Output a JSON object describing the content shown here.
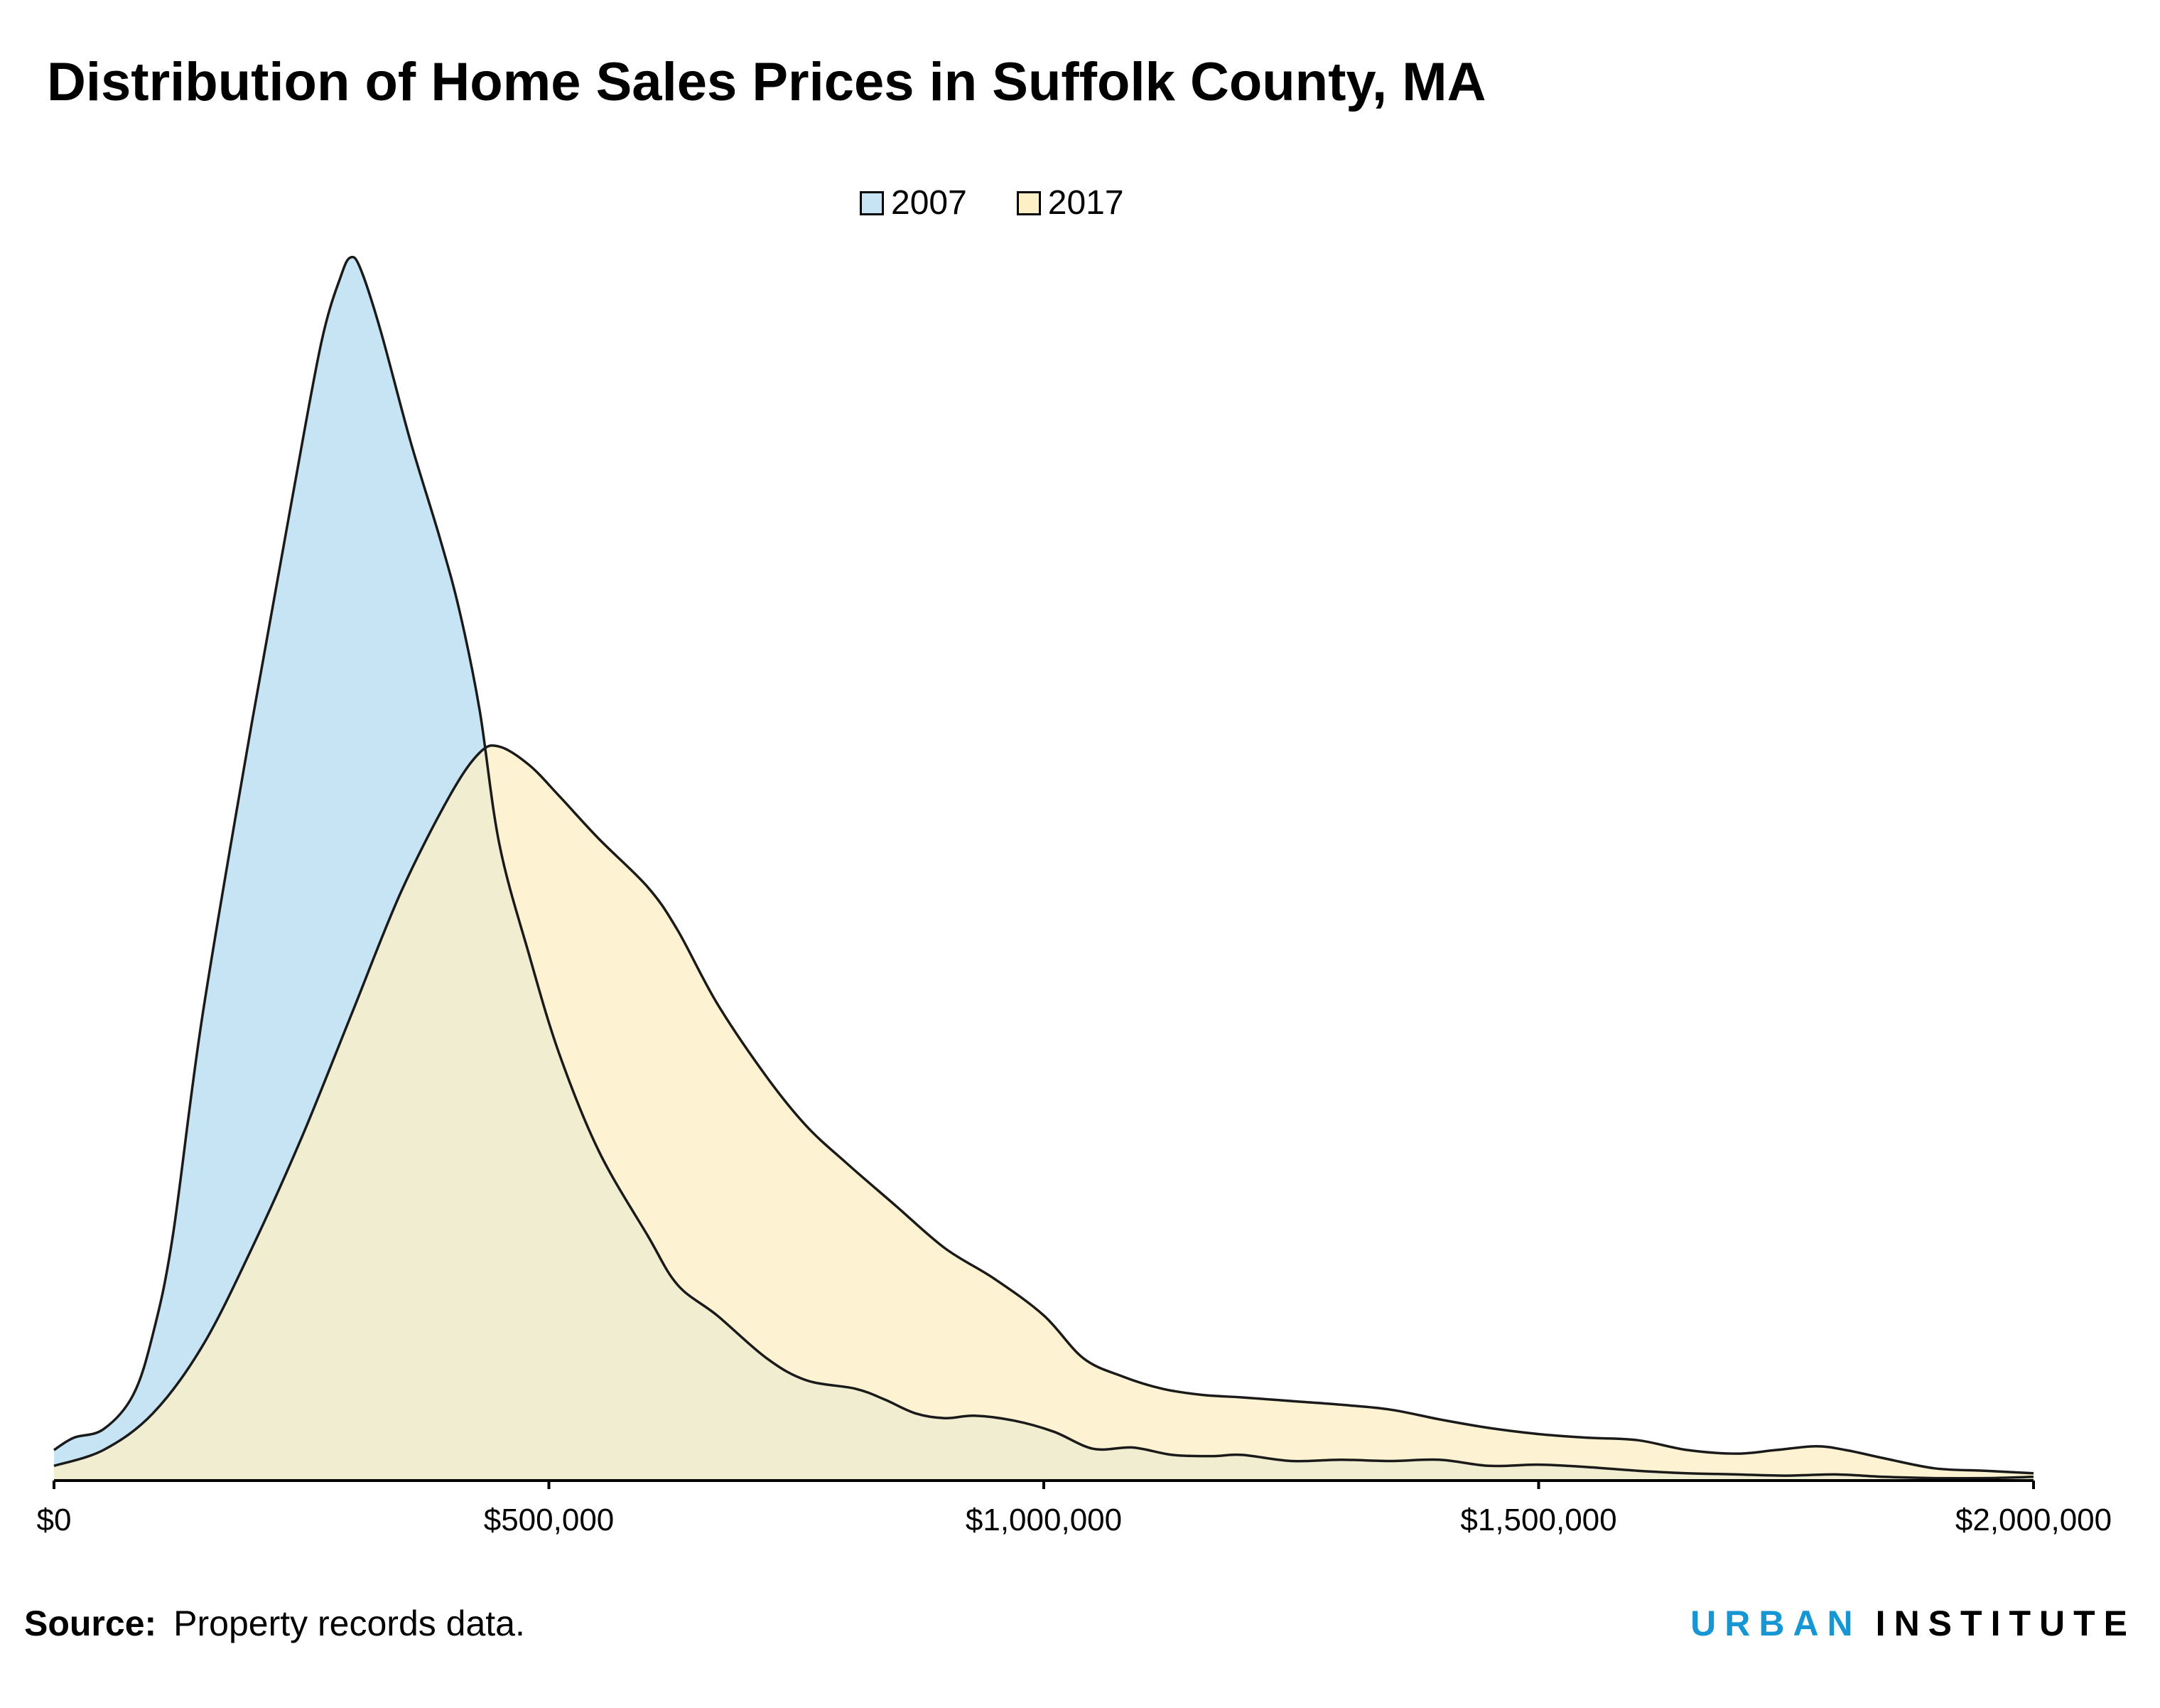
{
  "chart_data": {
    "type": "area",
    "title": "Distribution of Home Sales Prices in Suffolk County, MA",
    "xlabel": "",
    "ylabel": "",
    "xlim": [
      0,
      2000000
    ],
    "ylim": [
      0,
      1.0
    ],
    "x_ticks": [
      0,
      500000,
      1000000,
      1500000,
      2000000
    ],
    "x_tick_labels": [
      "$0",
      "$500,000",
      "$1,000,000",
      "$1,500,000",
      "$2,000,000"
    ],
    "grid": false,
    "legend_position": "top-center",
    "series": [
      {
        "name": "2007",
        "color": "#c6e4f4",
        "points": [
          [
            0,
            0.025
          ],
          [
            20000,
            0.035
          ],
          [
            50000,
            0.042
          ],
          [
            80000,
            0.07
          ],
          [
            100000,
            0.12
          ],
          [
            120000,
            0.2
          ],
          [
            150000,
            0.38
          ],
          [
            200000,
            0.62
          ],
          [
            240000,
            0.8
          ],
          [
            270000,
            0.93
          ],
          [
            290000,
            0.985
          ],
          [
            300000,
            1.0
          ],
          [
            310000,
            0.99
          ],
          [
            330000,
            0.94
          ],
          [
            360000,
            0.85
          ],
          [
            390000,
            0.77
          ],
          [
            410000,
            0.71
          ],
          [
            430000,
            0.63
          ],
          [
            450000,
            0.52
          ],
          [
            480000,
            0.43
          ],
          [
            510000,
            0.35
          ],
          [
            550000,
            0.27
          ],
          [
            600000,
            0.2
          ],
          [
            630000,
            0.16
          ],
          [
            670000,
            0.135
          ],
          [
            720000,
            0.1
          ],
          [
            760000,
            0.082
          ],
          [
            810000,
            0.075
          ],
          [
            840000,
            0.066
          ],
          [
            870000,
            0.055
          ],
          [
            900000,
            0.051
          ],
          [
            930000,
            0.053
          ],
          [
            970000,
            0.049
          ],
          [
            1010000,
            0.04
          ],
          [
            1050000,
            0.026
          ],
          [
            1090000,
            0.027
          ],
          [
            1130000,
            0.021
          ],
          [
            1170000,
            0.02
          ],
          [
            1200000,
            0.021
          ],
          [
            1250000,
            0.016
          ],
          [
            1300000,
            0.017
          ],
          [
            1350000,
            0.016
          ],
          [
            1400000,
            0.017
          ],
          [
            1450000,
            0.012
          ],
          [
            1500000,
            0.013
          ],
          [
            1550000,
            0.011
          ],
          [
            1600000,
            0.008
          ],
          [
            1650000,
            0.006
          ],
          [
            1700000,
            0.005
          ],
          [
            1750000,
            0.004
          ],
          [
            1800000,
            0.005
          ],
          [
            1850000,
            0.003
          ],
          [
            1900000,
            0.002
          ],
          [
            1950000,
            0.002
          ],
          [
            2000000,
            0.003
          ]
        ]
      },
      {
        "name": "2017",
        "color": "#fdf0c6",
        "points": [
          [
            0,
            0.012
          ],
          [
            50000,
            0.025
          ],
          [
            100000,
            0.055
          ],
          [
            150000,
            0.11
          ],
          [
            200000,
            0.19
          ],
          [
            250000,
            0.28
          ],
          [
            300000,
            0.38
          ],
          [
            350000,
            0.48
          ],
          [
            400000,
            0.56
          ],
          [
            430000,
            0.595
          ],
          [
            450000,
            0.6
          ],
          [
            480000,
            0.585
          ],
          [
            510000,
            0.56
          ],
          [
            550000,
            0.525
          ],
          [
            600000,
            0.485
          ],
          [
            630000,
            0.45
          ],
          [
            670000,
            0.39
          ],
          [
            720000,
            0.33
          ],
          [
            760000,
            0.29
          ],
          [
            800000,
            0.26
          ],
          [
            850000,
            0.225
          ],
          [
            900000,
            0.19
          ],
          [
            950000,
            0.165
          ],
          [
            1000000,
            0.135
          ],
          [
            1040000,
            0.1
          ],
          [
            1080000,
            0.085
          ],
          [
            1120000,
            0.075
          ],
          [
            1160000,
            0.07
          ],
          [
            1200000,
            0.068
          ],
          [
            1250000,
            0.065
          ],
          [
            1300000,
            0.062
          ],
          [
            1350000,
            0.058
          ],
          [
            1400000,
            0.05
          ],
          [
            1450000,
            0.043
          ],
          [
            1500000,
            0.038
          ],
          [
            1550000,
            0.035
          ],
          [
            1600000,
            0.033
          ],
          [
            1650000,
            0.025
          ],
          [
            1700000,
            0.022
          ],
          [
            1740000,
            0.025
          ],
          [
            1780000,
            0.028
          ],
          [
            1810000,
            0.025
          ],
          [
            1850000,
            0.018
          ],
          [
            1900000,
            0.01
          ],
          [
            1950000,
            0.008
          ],
          [
            2000000,
            0.006
          ]
        ]
      }
    ]
  },
  "source": {
    "label": "Source:",
    "text": "Property records data."
  },
  "brand": {
    "part1": "URBAN",
    "part2": "INSTITUTE",
    "color1": "#1696d2",
    "color2": "#000000"
  }
}
